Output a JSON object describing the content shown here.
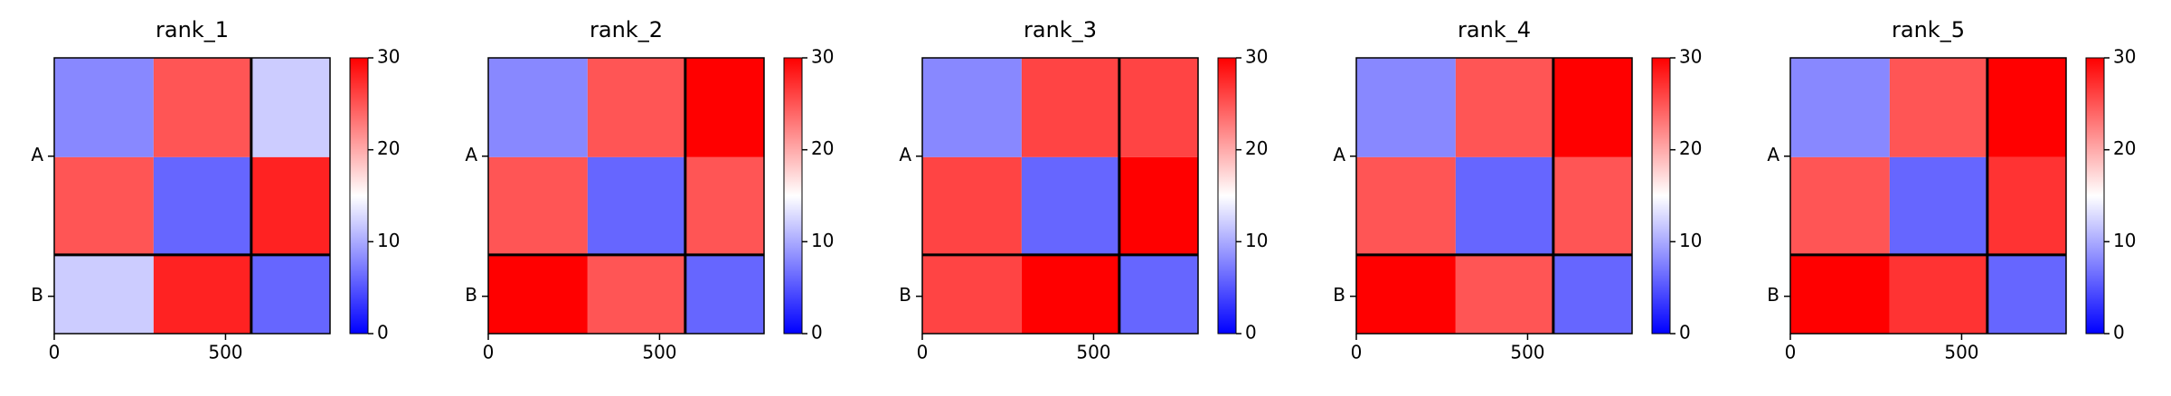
{
  "chart_data": [
    {
      "type": "heatmap",
      "title": "rank_1",
      "edges": [
        0,
        290,
        575,
        805
      ],
      "values": [
        [
          8,
          25,
          12
        ],
        [
          25,
          6,
          28
        ],
        [
          12,
          28,
          6
        ]
      ],
      "xlim": [
        0,
        805
      ],
      "ylim": [
        805,
        0
      ],
      "xticks": [
        0,
        500
      ],
      "yticks": [
        {
          "value": 287,
          "label": "A"
        },
        {
          "value": 696,
          "label": "B"
        }
      ],
      "cmap": "bwr",
      "clim": [
        0,
        30
      ],
      "cticks": [
        0,
        10,
        20,
        30
      ],
      "chain_break": 575
    },
    {
      "type": "heatmap",
      "title": "rank_2",
      "edges": [
        0,
        290,
        575,
        805
      ],
      "values": [
        [
          8,
          25,
          30
        ],
        [
          25,
          6,
          25
        ],
        [
          30,
          25,
          6
        ]
      ],
      "xlim": [
        0,
        805
      ],
      "ylim": [
        805,
        0
      ],
      "xticks": [
        0,
        500
      ],
      "yticks": [
        {
          "value": 287,
          "label": "A"
        },
        {
          "value": 696,
          "label": "B"
        }
      ],
      "cmap": "bwr",
      "clim": [
        0,
        30
      ],
      "cticks": [
        0,
        10,
        20,
        30
      ],
      "chain_break": 575
    },
    {
      "type": "heatmap",
      "title": "rank_3",
      "edges": [
        0,
        290,
        575,
        805
      ],
      "values": [
        [
          8,
          26,
          26
        ],
        [
          26,
          6,
          30
        ],
        [
          26,
          30,
          6
        ]
      ],
      "xlim": [
        0,
        805
      ],
      "ylim": [
        805,
        0
      ],
      "xticks": [
        0,
        500
      ],
      "yticks": [
        {
          "value": 287,
          "label": "A"
        },
        {
          "value": 696,
          "label": "B"
        }
      ],
      "cmap": "bwr",
      "clim": [
        0,
        30
      ],
      "cticks": [
        0,
        10,
        20,
        30
      ],
      "chain_break": 575
    },
    {
      "type": "heatmap",
      "title": "rank_4",
      "edges": [
        0,
        290,
        575,
        805
      ],
      "values": [
        [
          8,
          25,
          30
        ],
        [
          25,
          6,
          25
        ],
        [
          30,
          25,
          6
        ]
      ],
      "xlim": [
        0,
        805
      ],
      "ylim": [
        805,
        0
      ],
      "xticks": [
        0,
        500
      ],
      "yticks": [
        {
          "value": 287,
          "label": "A"
        },
        {
          "value": 696,
          "label": "B"
        }
      ],
      "cmap": "bwr",
      "clim": [
        0,
        30
      ],
      "cticks": [
        0,
        10,
        20,
        30
      ],
      "chain_break": 575
    },
    {
      "type": "heatmap",
      "title": "rank_5",
      "edges": [
        0,
        290,
        575,
        805
      ],
      "values": [
        [
          8,
          25,
          30
        ],
        [
          25,
          6,
          27
        ],
        [
          30,
          27,
          6
        ]
      ],
      "xlim": [
        0,
        805
      ],
      "ylim": [
        805,
        0
      ],
      "xticks": [
        0,
        500
      ],
      "yticks": [
        {
          "value": 287,
          "label": "A"
        },
        {
          "value": 696,
          "label": "B"
        }
      ],
      "cmap": "bwr",
      "clim": [
        0,
        30
      ],
      "cticks": [
        0,
        10,
        20,
        30
      ],
      "chain_break": 575
    }
  ]
}
